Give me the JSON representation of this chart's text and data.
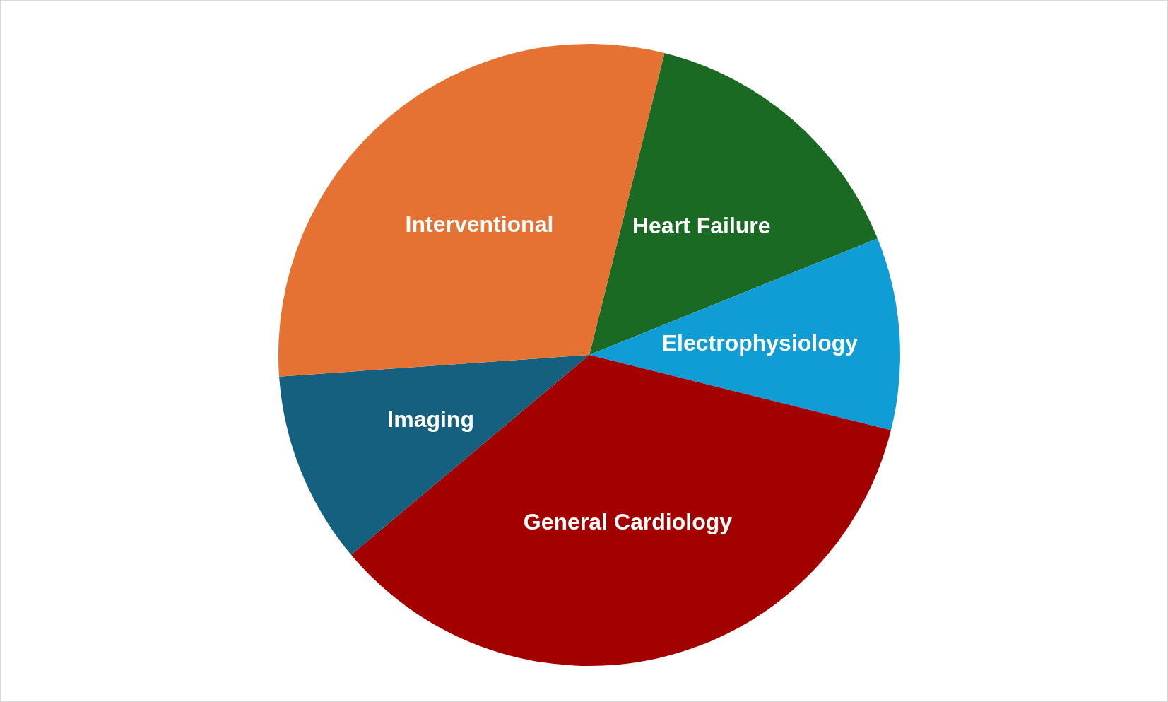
{
  "chart_data": {
    "type": "pie",
    "categories": [
      "Heart Failure",
      "Electrophysiology",
      "General Cardiology",
      "Imaging",
      "Interventional"
    ],
    "values": [
      15,
      10,
      35,
      10,
      30
    ],
    "colors": [
      "#1b6a24",
      "#109dd6",
      "#a30000",
      "#155f7f",
      "#e57133"
    ]
  }
}
